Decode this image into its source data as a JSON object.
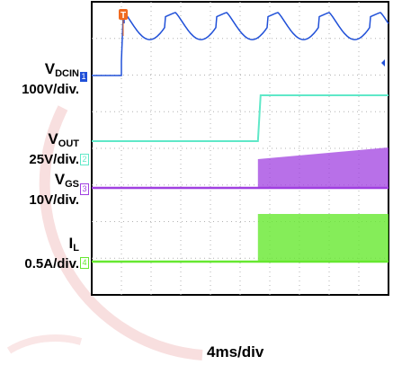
{
  "chart_data": {
    "type": "line",
    "timebase": "4ms/div",
    "divisions": {
      "x": 10,
      "y": 8
    },
    "trigger_marker": "T",
    "channels": [
      {
        "number": "1",
        "name": "V",
        "subscript": "DCIN",
        "scale": "100V/div.",
        "color": "#2050d8",
        "description": "ramps up then ripple after ~0.8 div"
      },
      {
        "number": "2",
        "name": "V",
        "subscript": "OUT",
        "scale": "25V/div.",
        "color": "#5fe8c8",
        "step_time_div": 5.6
      },
      {
        "number": "3",
        "name": "V",
        "subscript": "GS",
        "scale": "10V/div.",
        "color": "#a040e0",
        "switching_start_div": 5.6
      },
      {
        "number": "4",
        "name": "I",
        "subscript": "L",
        "scale": "0.5A/div.",
        "color": "#66e830",
        "switching_start_div": 5.6
      }
    ]
  },
  "watermark": {
    "color": "#f0b8b8"
  }
}
